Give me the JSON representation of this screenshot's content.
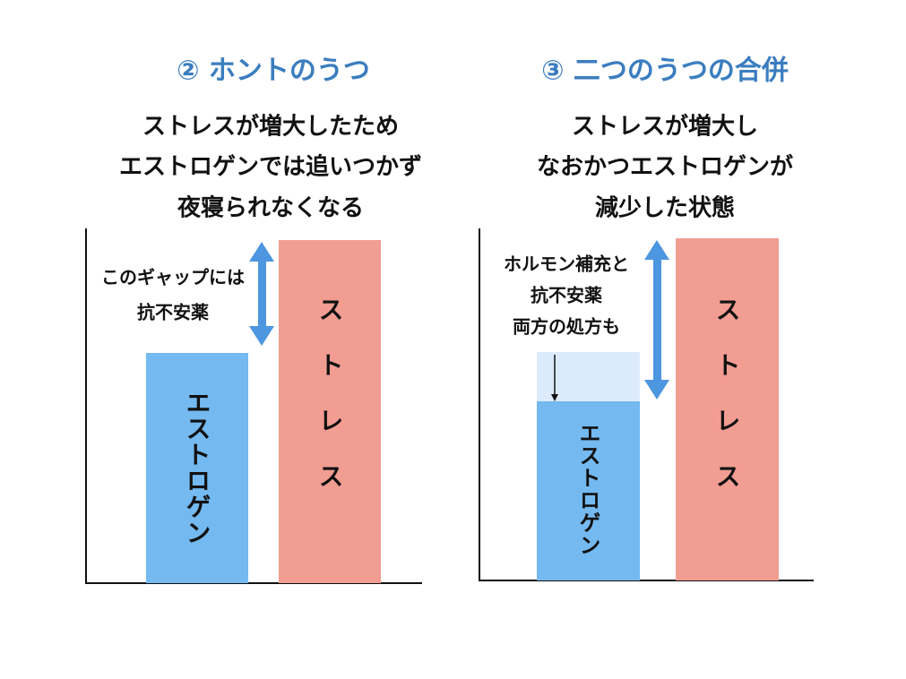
{
  "panels": [
    {
      "title": "② ホントのうつ",
      "description": [
        "ストレスが増大したため",
        "エストロゲンでは追いつかず",
        "夜寝られなくなる"
      ],
      "bars": [
        "エストロゲン",
        "ストレス"
      ],
      "annotation": [
        "このギャップには",
        "抗不安薬"
      ]
    },
    {
      "title": "③ 二つのうつの合併",
      "description": [
        "ストレスが増大し",
        "なおかつエストロゲンが",
        "減少した状態"
      ],
      "bars": [
        "エストロゲン",
        "ストレス"
      ],
      "annotation": [
        "ホルモン補充と",
        "抗不安薬",
        "両方の処方も"
      ]
    }
  ]
}
